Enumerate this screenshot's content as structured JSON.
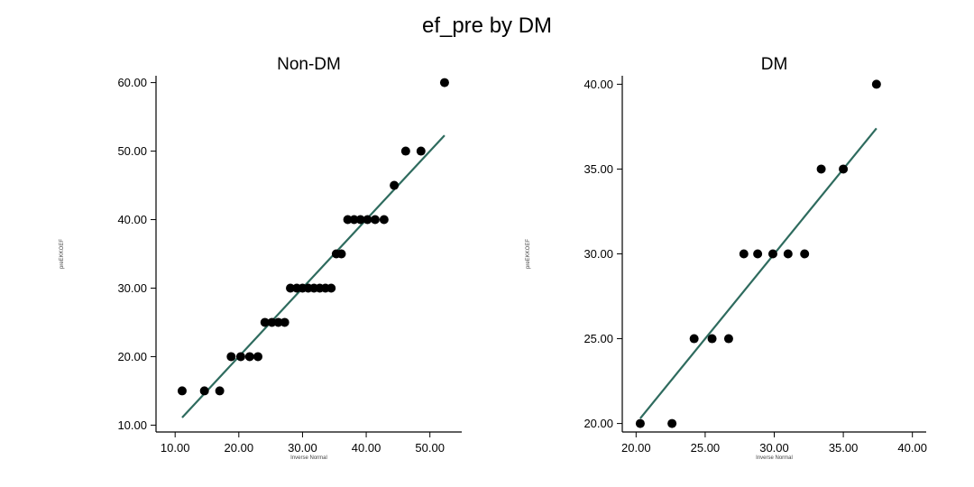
{
  "title": "ef_pre by DM",
  "chart_data": [
    {
      "type": "scatter",
      "title": "Non-DM",
      "xlabel": "Inverse Normal",
      "ylabel": "preEKKOEF",
      "xlim": [
        7,
        55
      ],
      "ylim": [
        9,
        61
      ],
      "xticks": [
        10,
        20,
        30,
        40,
        50
      ],
      "yticks": [
        10,
        20,
        30,
        40,
        50,
        60
      ],
      "tick_labels_x": [
        "10.00",
        "20.00",
        "30.00",
        "40.00",
        "50.00"
      ],
      "tick_labels_y": [
        "10.00",
        "20.00",
        "30.00",
        "40.00",
        "50.00",
        "60.00"
      ],
      "marker_color": "#000000",
      "line_color": "#2e6b5e",
      "fit_line": {
        "x": [
          11.1,
          52.3
        ],
        "y": [
          11.1,
          52.3
        ]
      },
      "points": [
        {
          "x": 11.1,
          "y": 15
        },
        {
          "x": 14.6,
          "y": 15
        },
        {
          "x": 17.0,
          "y": 15
        },
        {
          "x": 18.8,
          "y": 20
        },
        {
          "x": 20.3,
          "y": 20
        },
        {
          "x": 21.7,
          "y": 20
        },
        {
          "x": 23.0,
          "y": 20
        },
        {
          "x": 24.1,
          "y": 25
        },
        {
          "x": 25.2,
          "y": 25
        },
        {
          "x": 26.2,
          "y": 25
        },
        {
          "x": 27.2,
          "y": 25
        },
        {
          "x": 28.1,
          "y": 30
        },
        {
          "x": 29.1,
          "y": 30
        },
        {
          "x": 30.0,
          "y": 30
        },
        {
          "x": 30.9,
          "y": 30
        },
        {
          "x": 31.8,
          "y": 30
        },
        {
          "x": 32.7,
          "y": 30
        },
        {
          "x": 33.6,
          "y": 30
        },
        {
          "x": 34.5,
          "y": 30
        },
        {
          "x": 35.3,
          "y": 35
        },
        {
          "x": 36.1,
          "y": 35
        },
        {
          "x": 37.1,
          "y": 40
        },
        {
          "x": 38.1,
          "y": 40
        },
        {
          "x": 39.1,
          "y": 40
        },
        {
          "x": 40.2,
          "y": 40
        },
        {
          "x": 41.4,
          "y": 40
        },
        {
          "x": 42.8,
          "y": 40
        },
        {
          "x": 44.4,
          "y": 45
        },
        {
          "x": 46.2,
          "y": 50
        },
        {
          "x": 48.6,
          "y": 50
        },
        {
          "x": 52.3,
          "y": 60
        }
      ]
    },
    {
      "type": "scatter",
      "title": "DM",
      "xlabel": "Inverse Normal",
      "ylabel": "preEKKOEF",
      "xlim": [
        19,
        41
      ],
      "ylim": [
        19.5,
        40.5
      ],
      "xticks": [
        20,
        25,
        30,
        35,
        40
      ],
      "yticks": [
        20,
        25,
        30,
        35,
        40
      ],
      "tick_labels_x": [
        "20.00",
        "25.00",
        "30.00",
        "35.00",
        "40.00"
      ],
      "tick_labels_y": [
        "20.00",
        "25.00",
        "30.00",
        "35.00",
        "40.00"
      ],
      "marker_color": "#000000",
      "line_color": "#2e6b5e",
      "fit_line": {
        "x": [
          20.3,
          37.4
        ],
        "y": [
          20.3,
          37.4
        ]
      },
      "points": [
        {
          "x": 20.3,
          "y": 20
        },
        {
          "x": 22.6,
          "y": 20
        },
        {
          "x": 24.2,
          "y": 25
        },
        {
          "x": 25.5,
          "y": 25
        },
        {
          "x": 26.7,
          "y": 25
        },
        {
          "x": 27.8,
          "y": 30
        },
        {
          "x": 28.8,
          "y": 30
        },
        {
          "x": 29.9,
          "y": 30
        },
        {
          "x": 31.0,
          "y": 30
        },
        {
          "x": 32.2,
          "y": 30
        },
        {
          "x": 33.4,
          "y": 35
        },
        {
          "x": 35.0,
          "y": 35
        },
        {
          "x": 37.4,
          "y": 40
        }
      ]
    }
  ]
}
